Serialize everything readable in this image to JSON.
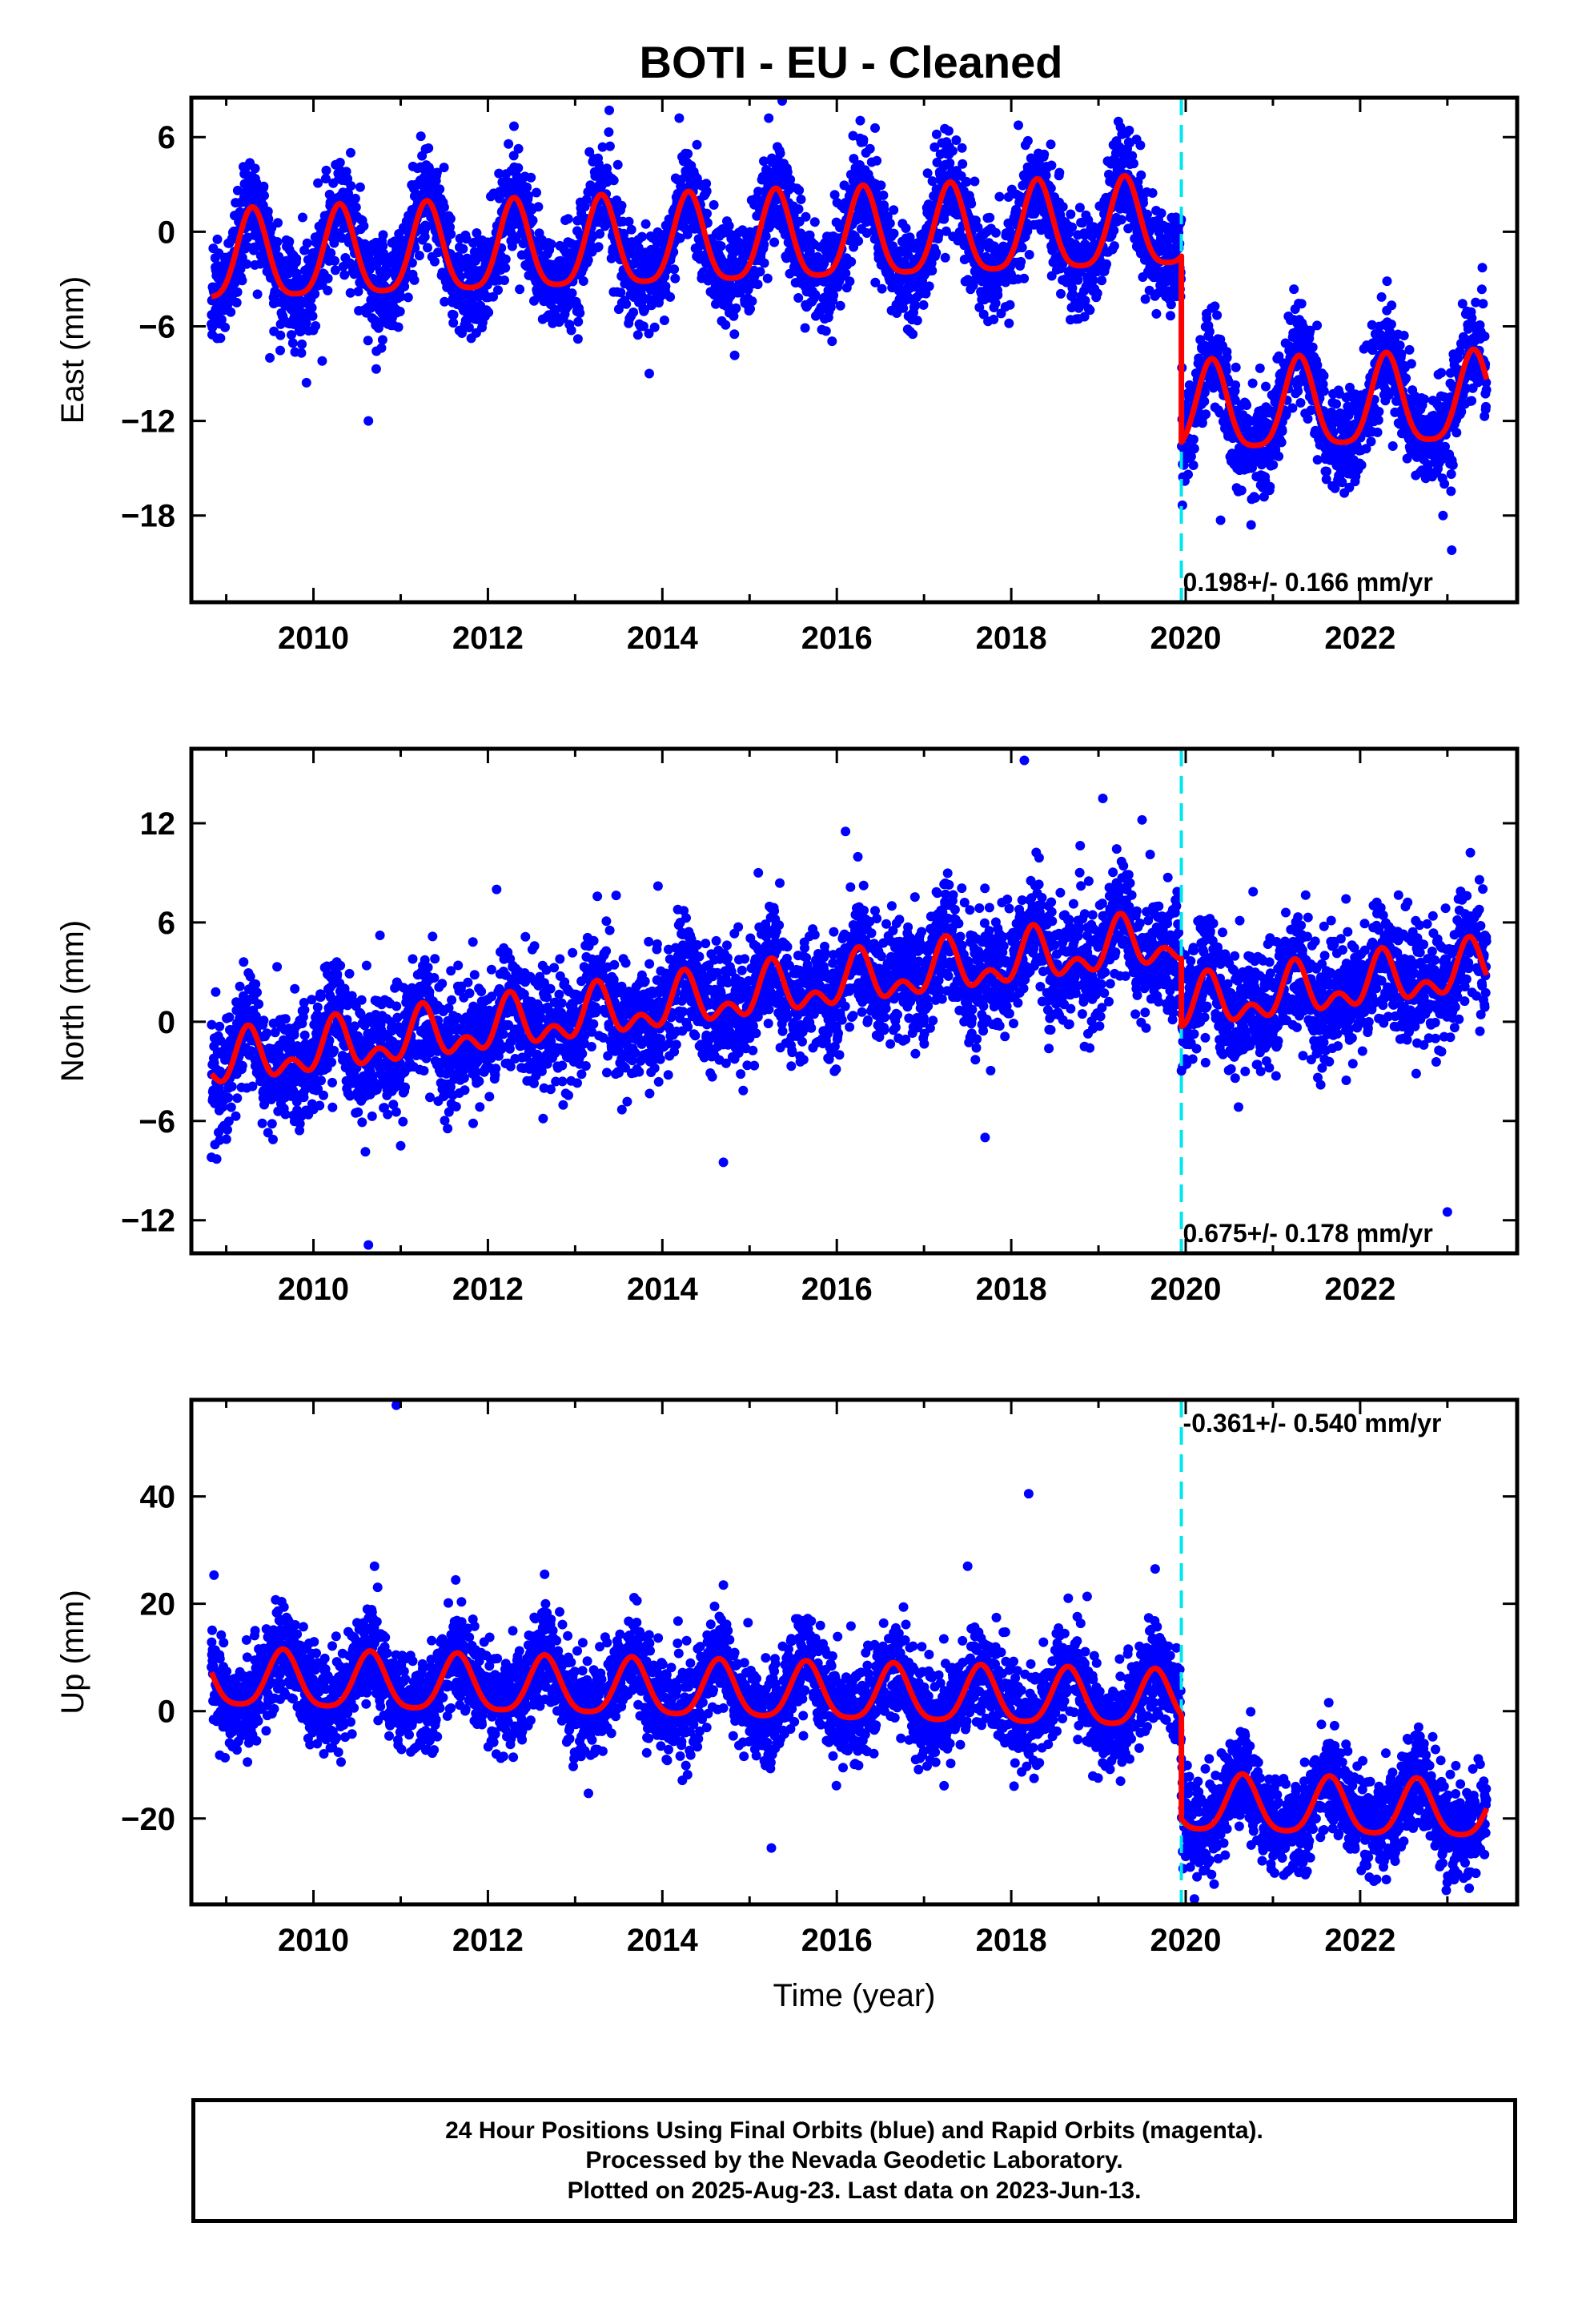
{
  "page_title": "BOTI  - EU - Cleaned",
  "x_axis_label": "Time (year)",
  "caption": [
    "24 Hour Positions Using Final Orbits (blue) and Rapid Orbits (magenta).",
    "Processed by the Nevada Geodetic Laboratory.",
    "Plotted on 2025-Aug-23. Last data on 2023-Jun-13."
  ],
  "colors": {
    "points": "#0000ff",
    "model": "#ff0000",
    "equipment_change": "#00e5ee",
    "frame": "#000000"
  },
  "chart_data": [
    {
      "type": "scatter",
      "component": "East",
      "ylabel": "East (mm)",
      "xlabel": "",
      "xlim": [
        2008.6,
        2023.8
      ],
      "ylim": [
        -23.5,
        8.5
      ],
      "xticks": [
        2010,
        2012,
        2014,
        2016,
        2018,
        2020,
        2022
      ],
      "yticks": [
        -18,
        -12,
        -6,
        0,
        6
      ],
      "rate_label": "0.198+/- 0.166 mm/yr",
      "rate_label_position": "bottom",
      "equipment_change_year": 2019.95,
      "data_range": [
        2008.83,
        2023.45
      ],
      "model": {
        "before_offset": -0.9,
        "after_offset": -12.7,
        "rate": 0.198,
        "annual_amplitude": 2.8,
        "semiannual_amplitude": 0.6,
        "peak_phase": 0.3,
        "ref_year": 2014
      },
      "scatter_sigma": 1.6,
      "outliers": [
        [
          2010.63,
          -12.0
        ],
        [
          2013.75,
          -6.0
        ],
        [
          2013.85,
          -9.0
        ],
        [
          2020.4,
          -18.3
        ],
        [
          2022.95,
          -18.0
        ],
        [
          2023.05,
          -20.2
        ],
        [
          2020.75,
          -18.6
        ],
        [
          2009.5,
          -8.0
        ],
        [
          2010.1,
          -8.2
        ]
      ]
    },
    {
      "type": "scatter",
      "component": "North",
      "ylabel": "North (mm)",
      "xlabel": "",
      "xlim": [
        2008.6,
        2023.8
      ],
      "ylim": [
        -14.0,
        16.5
      ],
      "xticks": [
        2010,
        2012,
        2014,
        2016,
        2018,
        2020,
        2022
      ],
      "yticks": [
        -12,
        -6,
        0,
        6,
        12
      ],
      "rate_label": "0.675+/- 0.178 mm/yr",
      "rate_label_position": "bottom",
      "equipment_change_year": 2019.95,
      "data_range": [
        2008.83,
        2023.45
      ],
      "model": {
        "before_offset": 0.9,
        "after_offset": -3.2,
        "rate": 0.675,
        "annual_amplitude": 1.2,
        "semiannual_amplitude": 0.9,
        "peak_phase": 0.25,
        "ref_year": 2014
      },
      "scatter_sigma": 1.8,
      "outliers": [
        [
          2018.15,
          15.8
        ],
        [
          2019.05,
          13.5
        ],
        [
          2019.5,
          12.2
        ],
        [
          2016.1,
          11.5
        ],
        [
          2010.63,
          -13.5
        ],
        [
          2023.0,
          -11.5
        ],
        [
          2014.7,
          -8.5
        ],
        [
          2017.7,
          -7.0
        ],
        [
          2011.0,
          -7.5
        ],
        [
          2013.95,
          8.2
        ],
        [
          2012.1,
          8.0
        ],
        [
          2015.1,
          9.0
        ]
      ]
    },
    {
      "type": "scatter",
      "component": "Up",
      "ylabel": "Up (mm)",
      "xlabel": "Time (year)",
      "xlim": [
        2008.6,
        2023.8
      ],
      "ylim": [
        -36,
        58
      ],
      "xticks": [
        2010,
        2012,
        2014,
        2016,
        2018,
        2020,
        2022
      ],
      "yticks": [
        -20,
        0,
        20,
        40
      ],
      "rate_label": "-0.361+/- 0.540 mm/yr",
      "rate_label_position": "top",
      "equipment_change_year": 2019.95,
      "data_range": [
        2008.83,
        2023.45
      ],
      "model": {
        "before_offset": 3.8,
        "after_offset": -15.5,
        "rate": -0.361,
        "annual_amplitude": 5.2,
        "semiannual_amplitude": 1.0,
        "peak_phase": 0.65,
        "ref_year": 2014
      },
      "scatter_sigma": 4.5,
      "outliers": [
        [
          2010.95,
          57.0
        ],
        [
          2018.2,
          40.5
        ],
        [
          2010.7,
          27.0
        ],
        [
          2017.5,
          27.0
        ],
        [
          2012.65,
          25.5
        ],
        [
          2019.65,
          26.5
        ],
        [
          2015.25,
          -25.5
        ],
        [
          2020.1,
          -35.0
        ],
        [
          2023.25,
          -33.0
        ],
        [
          2014.7,
          23.5
        ]
      ]
    }
  ]
}
